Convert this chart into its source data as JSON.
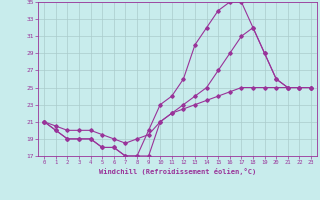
{
  "xlabel": "Windchill (Refroidissement éolien,°C)",
  "bg_color": "#c8ecec",
  "line_color": "#993399",
  "grid_color": "#aacccc",
  "xlim": [
    -0.5,
    23.5
  ],
  "ylim": [
    17,
    35
  ],
  "yticks": [
    17,
    19,
    21,
    23,
    25,
    27,
    29,
    31,
    33,
    35
  ],
  "xticks": [
    0,
    1,
    2,
    3,
    4,
    5,
    6,
    7,
    8,
    9,
    10,
    11,
    12,
    13,
    14,
    15,
    16,
    17,
    18,
    19,
    20,
    21,
    22,
    23
  ],
  "line1_x": [
    0,
    1,
    2,
    3,
    4,
    5,
    6,
    7,
    8,
    9,
    10,
    11,
    12,
    13,
    14,
    15,
    16,
    17,
    18,
    19,
    20,
    21,
    22,
    23
  ],
  "line1_y": [
    21,
    20,
    19,
    19,
    19,
    18,
    18,
    17,
    17,
    20,
    23,
    24,
    26,
    30,
    32,
    34,
    35,
    35,
    32,
    29,
    26,
    25,
    25,
    25
  ],
  "line2_x": [
    0,
    1,
    2,
    3,
    4,
    5,
    6,
    7,
    8,
    9,
    10,
    11,
    12,
    13,
    14,
    15,
    16,
    17,
    18,
    19,
    20,
    21,
    22,
    23
  ],
  "line2_y": [
    21,
    20,
    19,
    19,
    19,
    18,
    18,
    17,
    17,
    17,
    21,
    22,
    23,
    24,
    25,
    27,
    29,
    31,
    32,
    29,
    26,
    25,
    25,
    25
  ],
  "line3_x": [
    0,
    1,
    2,
    3,
    4,
    5,
    6,
    7,
    8,
    9,
    10,
    11,
    12,
    13,
    14,
    15,
    16,
    17,
    18,
    19,
    20,
    21,
    22,
    23
  ],
  "line3_y": [
    21,
    20.5,
    20,
    20,
    20,
    19.5,
    19,
    18.5,
    19,
    19.5,
    21,
    22,
    22.5,
    23,
    23.5,
    24,
    24.5,
    25,
    25,
    25,
    25,
    25,
    25,
    25
  ]
}
